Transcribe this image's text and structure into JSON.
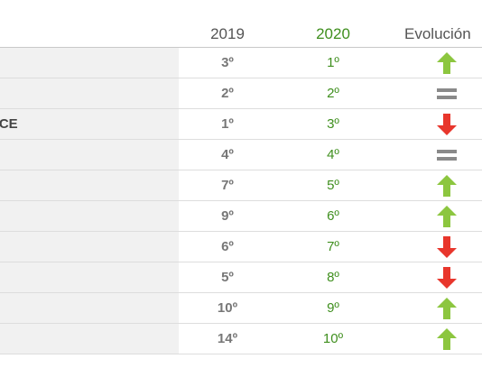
{
  "header": {
    "col_2019": "2019",
    "col_2020": "2020",
    "col_evolution": "Evolución"
  },
  "rows": [
    {
      "name": "",
      "y2019": "3º",
      "y2020": "1º",
      "trend": "up"
    },
    {
      "name": "",
      "y2019": "2º",
      "y2020": "2º",
      "trend": "equal"
    },
    {
      "name": "NCE",
      "y2019": "1º",
      "y2020": "3º",
      "trend": "down"
    },
    {
      "name": "",
      "y2019": "4º",
      "y2020": "4º",
      "trend": "equal"
    },
    {
      "name": "",
      "y2019": "7º",
      "y2020": "5º",
      "trend": "up"
    },
    {
      "name": "",
      "y2019": "9º",
      "y2020": "6º",
      "trend": "up"
    },
    {
      "name": "",
      "y2019": "6º",
      "y2020": "7º",
      "trend": "down"
    },
    {
      "name": "",
      "y2019": "5º",
      "y2020": "8º",
      "trend": "down"
    },
    {
      "name": "",
      "y2019": "10º",
      "y2020": "9º",
      "trend": "up"
    },
    {
      "name": "",
      "y2019": "14º",
      "y2020": "10º",
      "trend": "up"
    }
  ],
  "colors": {
    "up": "#8cc63f",
    "down": "#e8362c",
    "equal": "#8a8a8a",
    "year_2020": "#3f8f1e"
  },
  "icons": {
    "up": "arrow-up-icon",
    "down": "arrow-down-icon",
    "equal": "equal-icon"
  }
}
